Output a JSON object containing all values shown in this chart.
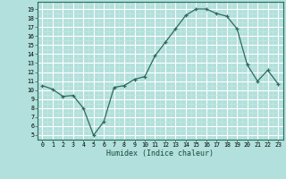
{
  "x": [
    0,
    1,
    2,
    3,
    4,
    5,
    6,
    7,
    8,
    9,
    10,
    11,
    12,
    13,
    14,
    15,
    16,
    17,
    18,
    19,
    20,
    21,
    22,
    23
  ],
  "y": [
    10.5,
    10.1,
    9.3,
    9.4,
    8.0,
    5.0,
    6.5,
    10.3,
    10.5,
    11.2,
    11.5,
    13.8,
    15.3,
    16.8,
    18.3,
    19.0,
    19.0,
    18.5,
    18.2,
    16.8,
    12.8,
    11.0,
    12.2,
    10.7
  ],
  "xlabel": "Humidex (Indice chaleur)",
  "line_color": "#2d6b5e",
  "marker_color": "#2d6b5e",
  "bg_color": "#b2e0dc",
  "grid_major_color": "#ffffff",
  "grid_minor_color": "#c8e8e4",
  "yticks": [
    5,
    6,
    7,
    8,
    9,
    10,
    11,
    12,
    13,
    14,
    15,
    16,
    17,
    18,
    19
  ],
  "xticks": [
    0,
    1,
    2,
    3,
    4,
    5,
    6,
    7,
    8,
    9,
    10,
    11,
    12,
    13,
    14,
    15,
    16,
    17,
    18,
    19,
    20,
    21,
    22,
    23
  ],
  "ylim": [
    4.5,
    19.8
  ],
  "xlim": [
    -0.5,
    23.5
  ]
}
